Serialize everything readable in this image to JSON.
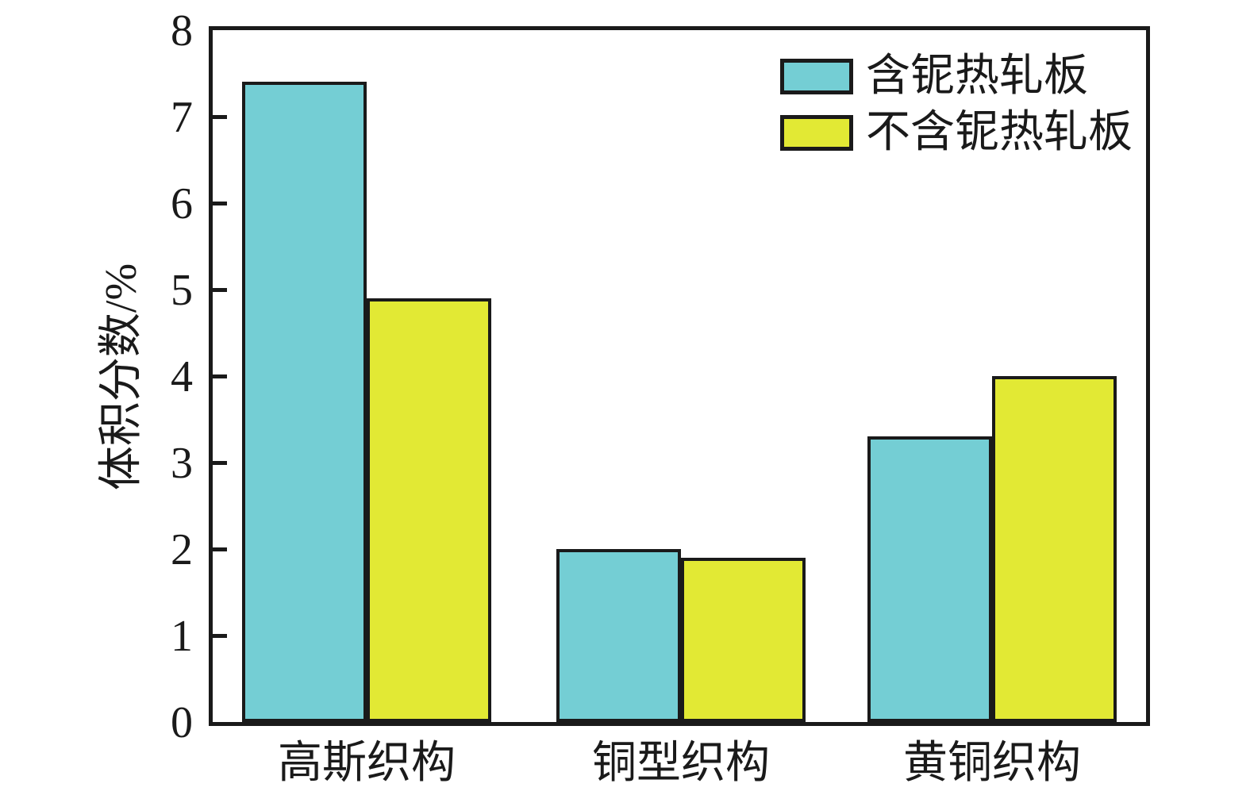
{
  "chart_data": {
    "type": "bar",
    "title": "",
    "categories": [
      "高斯织构",
      "铜型织构",
      "黄铜织构"
    ],
    "series": [
      {
        "name": "含铌热轧板",
        "color": "#74ced4",
        "values": [
          7.4,
          2.0,
          3.3
        ]
      },
      {
        "name": "不含铌热轧板",
        "color": "#e2e934",
        "values": [
          4.9,
          1.9,
          4.0
        ]
      }
    ],
    "xlabel": "",
    "ylabel": "体积分数/%",
    "ylim": [
      0,
      8
    ],
    "yticks": [
      0,
      1,
      2,
      3,
      4,
      5,
      6,
      7,
      8
    ],
    "grid": false,
    "legend_position": "top-right",
    "colors": {
      "axis": "#1a1a1a",
      "background": "#ffffff",
      "series1": "#74ced4",
      "series2": "#e2e934"
    }
  }
}
